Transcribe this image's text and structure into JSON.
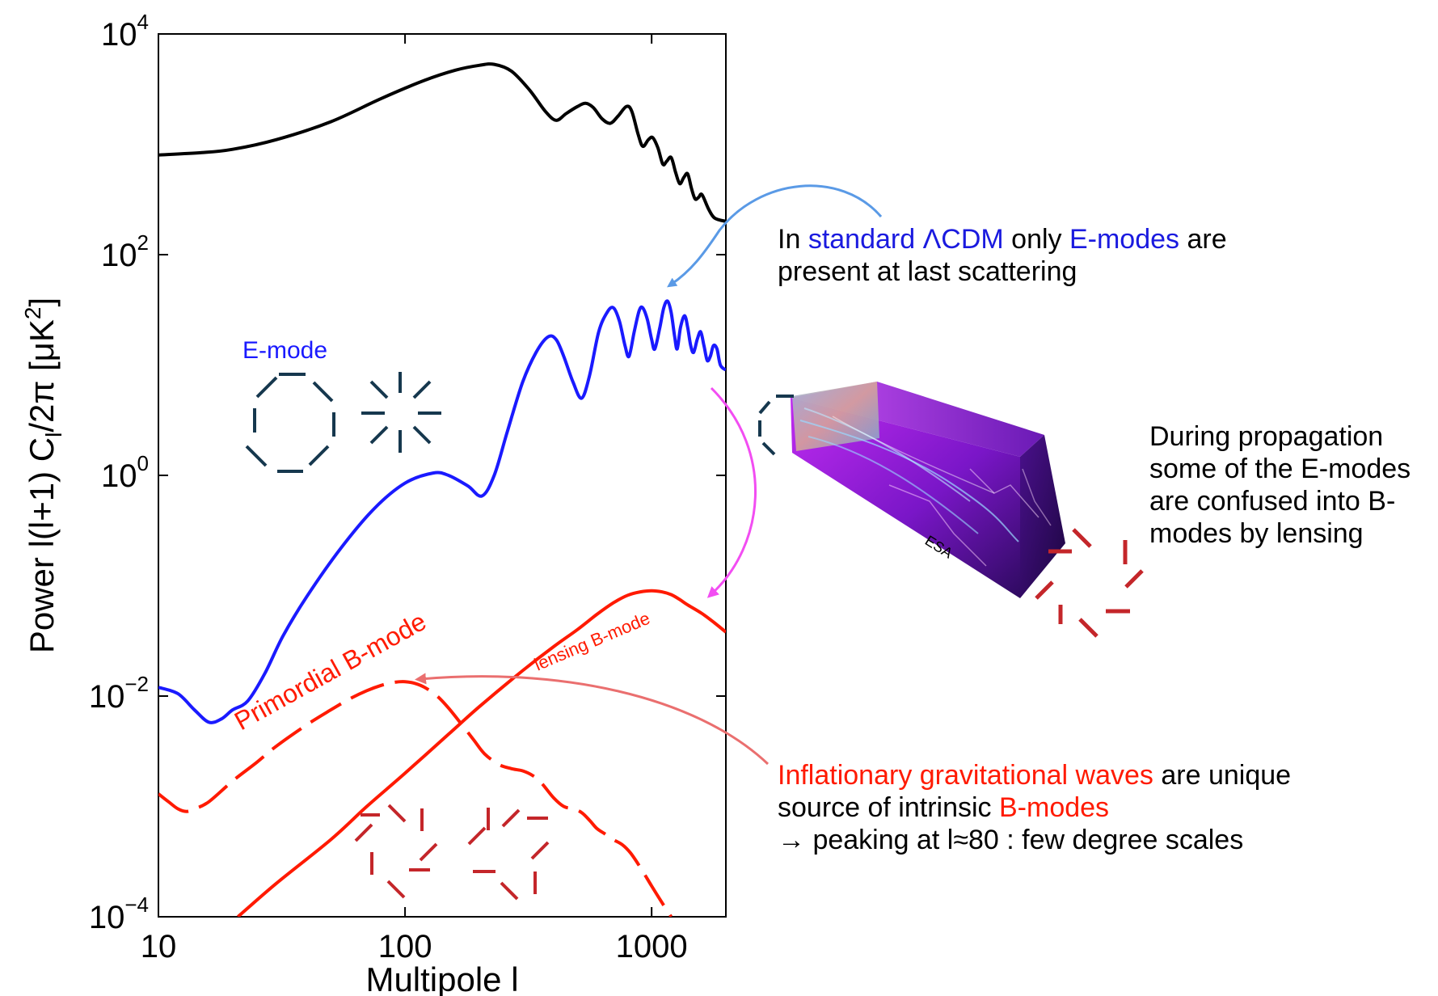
{
  "chart_data": {
    "type": "line",
    "xlabel": "Multipole l",
    "ylabel": "Power l(l+1) C",
    "ylabel_sub": "l",
    "ylabel_tail": "/2π [μK",
    "ylabel_sup": "2",
    "ylabel_end": "]",
    "xscale": "log",
    "yscale": "log",
    "xlim": [
      10,
      2000
    ],
    "ylim": [
      0.0001,
      10000
    ],
    "xticks": [
      {
        "value": 10,
        "label": "10"
      },
      {
        "value": 100,
        "label": "100"
      },
      {
        "value": 1000,
        "label": "1000"
      }
    ],
    "yticks": [
      {
        "value": 10000,
        "base": "10",
        "exp": "4"
      },
      {
        "value": 100,
        "base": "10",
        "exp": "2"
      },
      {
        "value": 1,
        "base": "10",
        "exp": "0"
      },
      {
        "value": 0.01,
        "base": "10",
        "exp": "−2"
      },
      {
        "value": 0.0001,
        "base": "10",
        "exp": "−4"
      }
    ],
    "series": [
      {
        "color": "#000000",
        "dash": "solid",
        "points": [
          [
            10,
            800
          ],
          [
            15,
            840
          ],
          [
            20,
            900
          ],
          [
            30,
            1100
          ],
          [
            50,
            1600
          ],
          [
            80,
            2600
          ],
          [
            120,
            3800
          ],
          [
            160,
            4700
          ],
          [
            200,
            5200
          ],
          [
            230,
            5300
          ],
          [
            270,
            4600
          ],
          [
            320,
            3100
          ],
          [
            370,
            2000
          ],
          [
            410,
            1650
          ],
          [
            450,
            1900
          ],
          [
            500,
            2200
          ],
          [
            540,
            2350
          ],
          [
            580,
            2150
          ],
          [
            630,
            1700
          ],
          [
            680,
            1550
          ],
          [
            730,
            1800
          ],
          [
            790,
            2200
          ],
          [
            830,
            2000
          ],
          [
            880,
            1250
          ],
          [
            920,
            960
          ],
          [
            970,
            1100
          ],
          [
            1010,
            1150
          ],
          [
            1060,
            930
          ],
          [
            1110,
            660
          ],
          [
            1150,
            700
          ],
          [
            1200,
            760
          ],
          [
            1250,
            560
          ],
          [
            1300,
            440
          ],
          [
            1350,
            500
          ],
          [
            1400,
            540
          ],
          [
            1450,
            400
          ],
          [
            1500,
            320
          ],
          [
            1550,
            330
          ],
          [
            1600,
            350
          ],
          [
            1700,
            260
          ],
          [
            1800,
            215
          ],
          [
            2000,
            200
          ]
        ]
      },
      {
        "color": "#1a1aff",
        "dash": "solid",
        "points": [
          [
            10,
            0.012
          ],
          [
            12,
            0.0105
          ],
          [
            14,
            0.0075
          ],
          [
            16,
            0.0058
          ],
          [
            18,
            0.0062
          ],
          [
            20,
            0.0075
          ],
          [
            23,
            0.009
          ],
          [
            27,
            0.016
          ],
          [
            32,
            0.035
          ],
          [
            40,
            0.08
          ],
          [
            55,
            0.22
          ],
          [
            75,
            0.5
          ],
          [
            100,
            0.85
          ],
          [
            130,
            1.05
          ],
          [
            150,
            1.0
          ],
          [
            180,
            0.8
          ],
          [
            205,
            0.65
          ],
          [
            230,
            1.0
          ],
          [
            260,
            2.5
          ],
          [
            300,
            7
          ],
          [
            340,
            13
          ],
          [
            380,
            18
          ],
          [
            410,
            17
          ],
          [
            440,
            12
          ],
          [
            480,
            7
          ],
          [
            520,
            5
          ],
          [
            560,
            8
          ],
          [
            610,
            20
          ],
          [
            660,
            30
          ],
          [
            700,
            33
          ],
          [
            740,
            25
          ],
          [
            780,
            15
          ],
          [
            810,
            12
          ],
          [
            850,
            20
          ],
          [
            890,
            31
          ],
          [
            920,
            33
          ],
          [
            960,
            26
          ],
          [
            1000,
            17
          ],
          [
            1030,
            14
          ],
          [
            1080,
            22
          ],
          [
            1120,
            33
          ],
          [
            1160,
            38
          ],
          [
            1200,
            30
          ],
          [
            1240,
            18
          ],
          [
            1270,
            14
          ],
          [
            1310,
            22
          ],
          [
            1360,
            28
          ],
          [
            1400,
            22
          ],
          [
            1440,
            15
          ],
          [
            1480,
            13
          ],
          [
            1530,
            17
          ],
          [
            1580,
            20
          ],
          [
            1630,
            15
          ],
          [
            1680,
            11
          ],
          [
            1730,
            12
          ],
          [
            1780,
            15
          ],
          [
            1840,
            14
          ],
          [
            1900,
            10
          ],
          [
            2000,
            9
          ]
        ]
      },
      {
        "color": "#ff1a00",
        "dash": "dashed",
        "points": [
          [
            10,
            0.0013
          ],
          [
            11,
            0.0011
          ],
          [
            12,
            0.00095
          ],
          [
            13,
            0.0009
          ],
          [
            14,
            0.00095
          ],
          [
            16,
            0.0011
          ],
          [
            20,
            0.0017
          ],
          [
            25,
            0.0025
          ],
          [
            30,
            0.0035
          ],
          [
            40,
            0.0055
          ],
          [
            50,
            0.0075
          ],
          [
            60,
            0.0095
          ],
          [
            70,
            0.0112
          ],
          [
            80,
            0.0125
          ],
          [
            90,
            0.0133
          ],
          [
            100,
            0.0135
          ],
          [
            110,
            0.013
          ],
          [
            120,
            0.012
          ],
          [
            135,
            0.01
          ],
          [
            150,
            0.0078
          ],
          [
            170,
            0.0055
          ],
          [
            190,
            0.004
          ],
          [
            210,
            0.003
          ],
          [
            240,
            0.0024
          ],
          [
            270,
            0.0022
          ],
          [
            300,
            0.0021
          ],
          [
            330,
            0.0019
          ],
          [
            360,
            0.0016
          ],
          [
            400,
            0.0012
          ],
          [
            440,
            0.001
          ],
          [
            480,
            0.00095
          ],
          [
            520,
            0.00088
          ],
          [
            560,
            0.00075
          ],
          [
            600,
            0.00063
          ],
          [
            650,
            0.00056
          ],
          [
            700,
            0.0005
          ],
          [
            760,
            0.00045
          ],
          [
            820,
            0.00038
          ],
          [
            900,
            0.00028
          ],
          [
            1000,
            0.00019
          ],
          [
            1100,
            0.000135
          ],
          [
            1200,
            0.0001
          ]
        ]
      },
      {
        "color": "#ff1a00",
        "dash": "solid",
        "points": [
          [
            21,
            0.0001
          ],
          [
            30,
            0.0002
          ],
          [
            50,
            0.0005
          ],
          [
            70,
            0.001
          ],
          [
            100,
            0.002
          ],
          [
            150,
            0.0045
          ],
          [
            200,
            0.008
          ],
          [
            300,
            0.017
          ],
          [
            400,
            0.028
          ],
          [
            500,
            0.04
          ],
          [
            600,
            0.055
          ],
          [
            700,
            0.07
          ],
          [
            800,
            0.082
          ],
          [
            900,
            0.088
          ],
          [
            1000,
            0.09
          ],
          [
            1100,
            0.088
          ],
          [
            1200,
            0.083
          ],
          [
            1300,
            0.075
          ],
          [
            1400,
            0.067
          ],
          [
            1600,
            0.056
          ],
          [
            1800,
            0.046
          ],
          [
            2000,
            0.038
          ]
        ]
      }
    ],
    "series_labels": [
      {
        "text": "E-mode",
        "color": "#1a1aff"
      },
      {
        "text": "Primordial B-mode",
        "color": "#ff1a00"
      },
      {
        "text": "lensing B-mode",
        "color": "#ff1a00"
      }
    ]
  },
  "annotations": {
    "lcdm": {
      "pre": "In ",
      "blue1": "standard ΛCDM",
      "mid": " only ",
      "blue2": "E-modes",
      "post": " are",
      "line2": "present at last scattering"
    },
    "propagation": {
      "line1": "During propagation",
      "line2": "some of the E-modes",
      "line3": "are confused into B-",
      "line4": "modes by lensing"
    },
    "inflation": {
      "red1": "Inflationary gravitational waves",
      "post1": " are unique",
      "pre2": "source of intrinsic ",
      "red2": "B-modes",
      "line3": "→ peaking at l≈80 : few degree scales"
    },
    "image_credit": "ESA"
  },
  "colors": {
    "emode_pattern": "#16384e",
    "bmode_pattern": "#c4262a",
    "arrow_lcdm": "#5a9ae6",
    "arrow_lensing": "#f24df2",
    "arrow_inflation": "#ea6f6f",
    "box_magenta": "#b325e8",
    "box_dark": "#3b0a78"
  }
}
